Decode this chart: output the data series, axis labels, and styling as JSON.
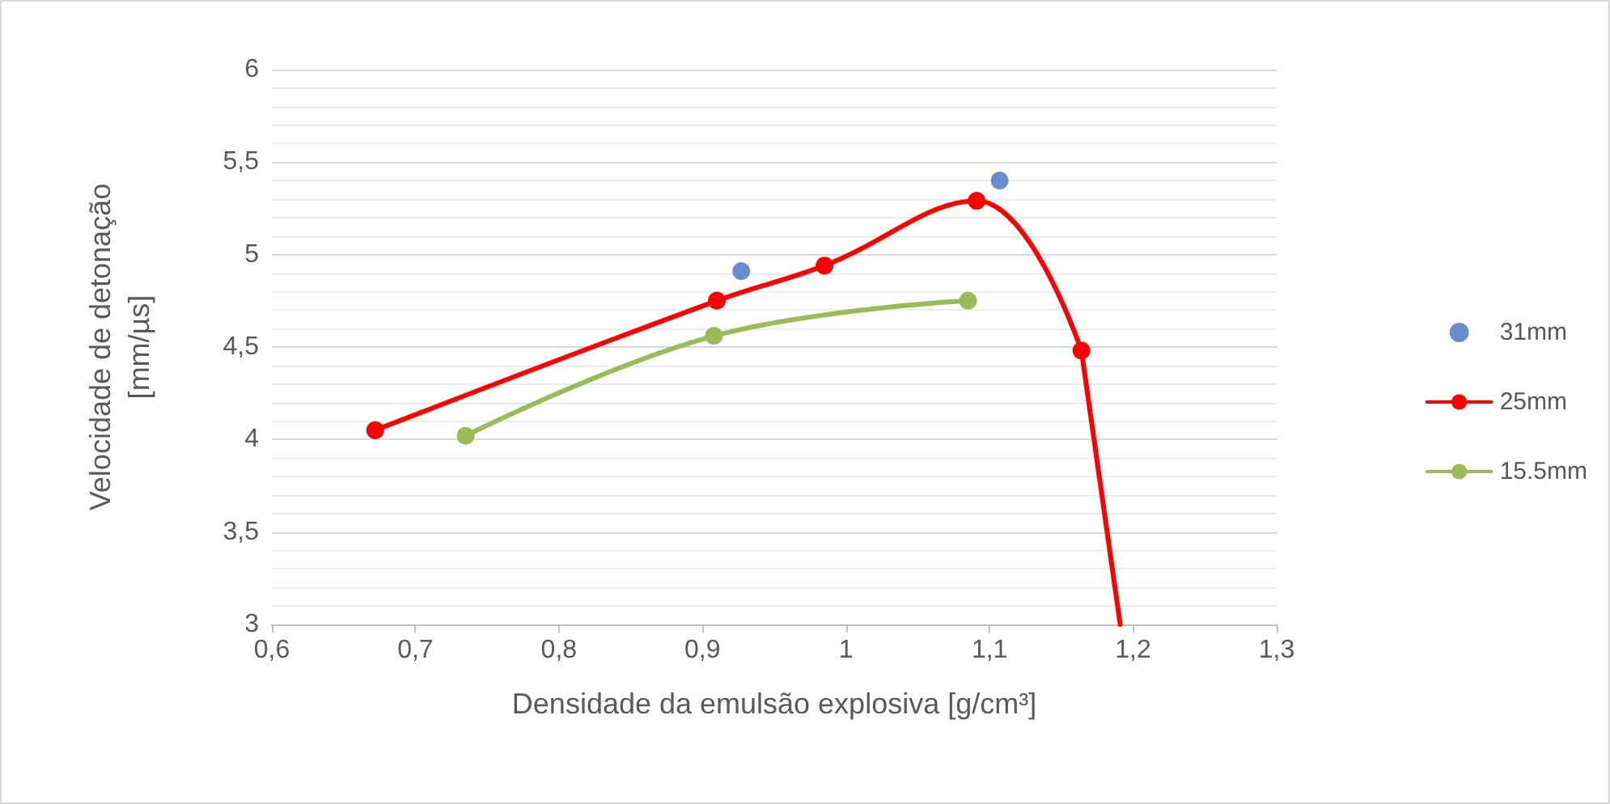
{
  "chart_data": {
    "type": "scatter",
    "xlabel": "Densidade da emulsão explosiva [g/cm³]",
    "ylabel": "Velocidade de detonação\n[mm/µs]",
    "series": [
      {
        "name": "31mm",
        "color": "#4472c4",
        "marker": "circle",
        "x": [
          0.927,
          1.107
        ],
        "values": [
          4.91,
          5.4
        ]
      },
      {
        "name": "25mm",
        "type": "line",
        "color": "#ff0000",
        "marker": "circle",
        "x": [
          0.672,
          0.91,
          0.985,
          1.091,
          1.164
        ],
        "values": [
          4.05,
          4.75,
          4.94,
          5.29,
          4.48
        ]
      },
      {
        "type": "line",
        "color": "#ff0000",
        "marker": "none",
        "x": [
          1.164,
          1.191
        ],
        "values": [
          4.48,
          3
        ]
      },
      {
        "name": "15.5mm",
        "type": "line",
        "color": "#9bbb59",
        "marker": "circle",
        "x": [
          0.735,
          0.908,
          1.085
        ],
        "values": [
          4.02,
          4.56,
          4.75
        ]
      }
    ],
    "xlim": [
      0.6,
      1.3
    ],
    "xticks": [
      {
        "value": 0.6,
        "label": "0,6"
      },
      {
        "value": 0.7,
        "label": "0,7"
      },
      {
        "value": 0.8,
        "label": "0,8"
      },
      {
        "value": 0.9,
        "label": "0,9"
      },
      {
        "value": 1,
        "label": "1"
      },
      {
        "value": 1.1,
        "label": "1,1"
      },
      {
        "value": 1.2,
        "label": "1,2"
      },
      {
        "value": 1.3,
        "label": "1,3"
      }
    ],
    "ylim": [
      3,
      6
    ],
    "yticks": [
      {
        "value": 3,
        "label": "3"
      },
      {
        "value": 3.5,
        "label": "3,5"
      },
      {
        "value": 4,
        "label": "4"
      },
      {
        "value": 4.5,
        "label": "4,5"
      },
      {
        "value": 5,
        "label": "5"
      },
      {
        "value": 5.5,
        "label": "5,5"
      },
      {
        "value": 6,
        "label": "6"
      }
    ],
    "grid": "y",
    "legend": "right"
  }
}
